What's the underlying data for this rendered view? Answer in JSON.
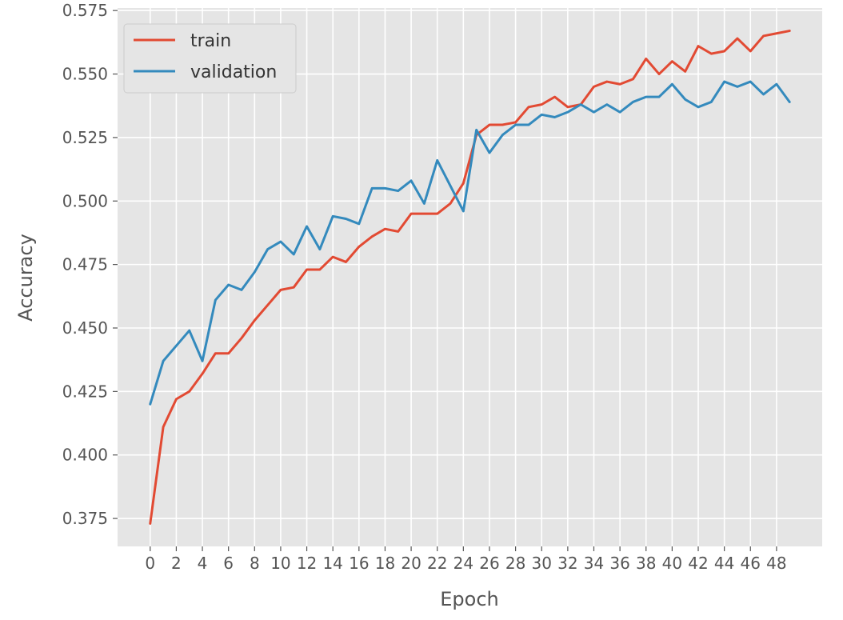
{
  "chart_data": {
    "type": "line",
    "xlabel": "Epoch",
    "ylabel": "Accuracy",
    "xlim": [
      -2.5,
      51.5
    ],
    "ylim": [
      0.364,
      0.576
    ],
    "xticks": [
      0,
      2,
      4,
      6,
      8,
      10,
      12,
      14,
      16,
      18,
      20,
      22,
      24,
      26,
      28,
      30,
      32,
      34,
      36,
      38,
      40,
      42,
      44,
      46,
      48
    ],
    "yticks": [
      "0.375",
      "0.400",
      "0.425",
      "0.450",
      "0.475",
      "0.500",
      "0.525",
      "0.550",
      "0.575"
    ],
    "grid": true,
    "legend_position": "top-left",
    "x": [
      0,
      1,
      2,
      3,
      4,
      5,
      6,
      7,
      8,
      9,
      10,
      11,
      12,
      13,
      14,
      15,
      16,
      17,
      18,
      19,
      20,
      21,
      22,
      23,
      24,
      25,
      26,
      27,
      28,
      29,
      30,
      31,
      32,
      33,
      34,
      35,
      36,
      37,
      38,
      39,
      40,
      41,
      42,
      43,
      44,
      45,
      46,
      47,
      48,
      49
    ],
    "series": [
      {
        "name": "train",
        "color": "#E24A33",
        "values": [
          0.373,
          0.411,
          0.422,
          0.425,
          0.432,
          0.44,
          0.44,
          0.446,
          0.453,
          0.459,
          0.465,
          0.466,
          0.473,
          0.473,
          0.478,
          0.476,
          0.482,
          0.486,
          0.489,
          0.488,
          0.495,
          0.495,
          0.495,
          0.499,
          0.507,
          0.526,
          0.53,
          0.53,
          0.531,
          0.537,
          0.538,
          0.541,
          0.537,
          0.538,
          0.545,
          0.547,
          0.546,
          0.548,
          0.556,
          0.55,
          0.555,
          0.551,
          0.561,
          0.558,
          0.559,
          0.564,
          0.559,
          0.565,
          0.566,
          0.567
        ]
      },
      {
        "name": "validation",
        "color": "#348ABD",
        "values": [
          0.42,
          0.437,
          0.443,
          0.449,
          0.437,
          0.461,
          0.467,
          0.465,
          0.472,
          0.481,
          0.484,
          0.479,
          0.49,
          0.481,
          0.494,
          0.493,
          0.491,
          0.505,
          0.505,
          0.504,
          0.508,
          0.499,
          0.516,
          0.506,
          0.496,
          0.528,
          0.519,
          0.526,
          0.53,
          0.53,
          0.534,
          0.533,
          0.535,
          0.538,
          0.535,
          0.538,
          0.535,
          0.539,
          0.541,
          0.541,
          0.546,
          0.54,
          0.537,
          0.539,
          0.547,
          0.545,
          0.547,
          0.542,
          0.546,
          0.539
        ]
      }
    ]
  }
}
